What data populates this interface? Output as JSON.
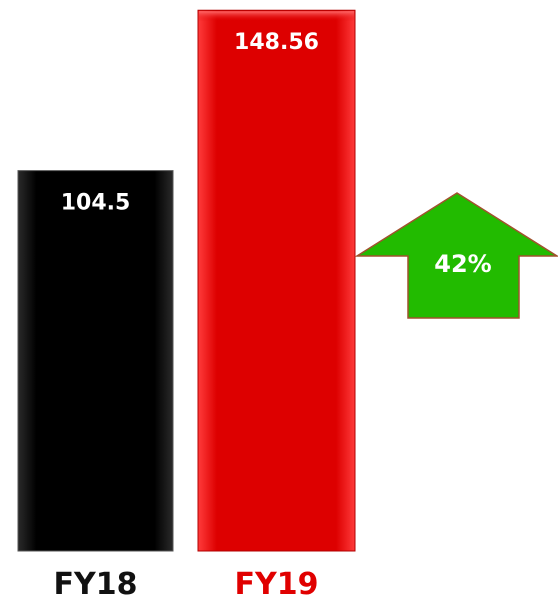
{
  "chart_data": {
    "type": "bar",
    "categories": [
      "FY18",
      "FY19"
    ],
    "values": [
      104.5,
      148.56
    ],
    "value_labels": [
      "104.5",
      "148.56"
    ],
    "bar_colors": [
      "#000000",
      "#e00000"
    ],
    "category_label_colors": [
      "#111111",
      "#e00000"
    ],
    "growth": {
      "label": "42%",
      "direction": "up",
      "color": "#22bb00",
      "border_color": "#a0522d"
    },
    "title": "",
    "xlabel": "",
    "ylabel": "",
    "ylim": [
      0,
      150
    ],
    "grid": false,
    "legend": "none"
  }
}
